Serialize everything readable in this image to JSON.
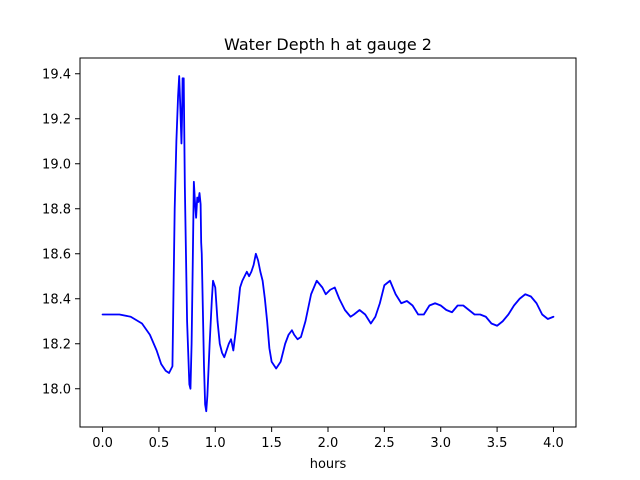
{
  "chart_data": {
    "type": "line",
    "title": "Water Depth h at gauge 2",
    "xlabel": "hours",
    "ylabel": "",
    "xlim": [
      -0.2,
      4.2
    ],
    "ylim": [
      17.83,
      19.47
    ],
    "xticks": [
      0.0,
      0.5,
      1.0,
      1.5,
      2.0,
      2.5,
      3.0,
      3.5,
      4.0
    ],
    "xtick_labels": [
      "0.0",
      "0.5",
      "1.0",
      "1.5",
      "2.0",
      "2.5",
      "3.0",
      "3.5",
      "4.0"
    ],
    "yticks": [
      18.0,
      18.2,
      18.4,
      18.6,
      18.8,
      19.0,
      19.2,
      19.4
    ],
    "ytick_labels": [
      "18.0",
      "18.2",
      "18.4",
      "18.6",
      "18.8",
      "19.0",
      "19.2",
      "19.4"
    ],
    "grid": false,
    "series": [
      {
        "color": "#0000ff",
        "x": [
          0.0,
          0.15,
          0.25,
          0.35,
          0.42,
          0.48,
          0.52,
          0.56,
          0.59,
          0.62,
          0.64,
          0.655,
          0.67,
          0.68,
          0.69,
          0.7,
          0.705,
          0.71,
          0.715,
          0.72,
          0.73,
          0.75,
          0.77,
          0.78,
          0.79,
          0.8,
          0.81,
          0.82,
          0.83,
          0.84,
          0.85,
          0.86,
          0.87,
          0.875,
          0.88,
          0.89,
          0.9,
          0.91,
          0.92,
          0.93,
          0.95,
          0.97,
          0.98,
          1.0,
          1.02,
          1.04,
          1.06,
          1.08,
          1.1,
          1.12,
          1.14,
          1.16,
          1.18,
          1.2,
          1.22,
          1.24,
          1.26,
          1.28,
          1.3,
          1.32,
          1.34,
          1.36,
          1.38,
          1.4,
          1.42,
          1.44,
          1.46,
          1.48,
          1.5,
          1.54,
          1.58,
          1.62,
          1.65,
          1.68,
          1.7,
          1.73,
          1.76,
          1.8,
          1.85,
          1.9,
          1.95,
          1.98,
          2.02,
          2.06,
          2.1,
          2.15,
          2.2,
          2.23,
          2.28,
          2.33,
          2.38,
          2.42,
          2.46,
          2.5,
          2.55,
          2.6,
          2.65,
          2.7,
          2.75,
          2.8,
          2.85,
          2.9,
          2.95,
          3.0,
          3.05,
          3.1,
          3.15,
          3.2,
          3.25,
          3.3,
          3.35,
          3.4,
          3.45,
          3.5,
          3.55,
          3.6,
          3.65,
          3.7,
          3.75,
          3.8,
          3.85,
          3.9,
          3.95,
          4.0
        ],
        "y": [
          18.33,
          18.33,
          18.32,
          18.29,
          18.24,
          18.17,
          18.11,
          18.08,
          18.07,
          18.1,
          18.8,
          19.1,
          19.3,
          19.39,
          19.25,
          19.09,
          19.2,
          19.38,
          19.3,
          19.38,
          18.9,
          18.3,
          18.02,
          18.0,
          18.2,
          18.55,
          18.92,
          18.83,
          18.76,
          18.85,
          18.83,
          18.87,
          18.82,
          18.65,
          18.6,
          18.35,
          18.1,
          17.93,
          17.9,
          17.97,
          18.2,
          18.4,
          18.48,
          18.45,
          18.3,
          18.2,
          18.16,
          18.14,
          18.17,
          18.2,
          18.22,
          18.17,
          18.25,
          18.35,
          18.45,
          18.48,
          18.5,
          18.52,
          18.5,
          18.52,
          18.55,
          18.6,
          18.57,
          18.52,
          18.48,
          18.4,
          18.3,
          18.18,
          18.12,
          18.09,
          18.12,
          18.2,
          18.24,
          18.26,
          18.24,
          18.22,
          18.23,
          18.3,
          18.42,
          18.48,
          18.45,
          18.42,
          18.44,
          18.45,
          18.4,
          18.35,
          18.32,
          18.33,
          18.35,
          18.33,
          18.29,
          18.32,
          18.38,
          18.46,
          18.48,
          18.42,
          18.38,
          18.39,
          18.37,
          18.33,
          18.33,
          18.37,
          18.38,
          18.37,
          18.35,
          18.34,
          18.37,
          18.37,
          18.35,
          18.33,
          18.33,
          18.32,
          18.29,
          18.28,
          18.3,
          18.33,
          18.37,
          18.4,
          18.42,
          18.41,
          18.38,
          18.33,
          18.31,
          18.32
        ]
      }
    ]
  }
}
